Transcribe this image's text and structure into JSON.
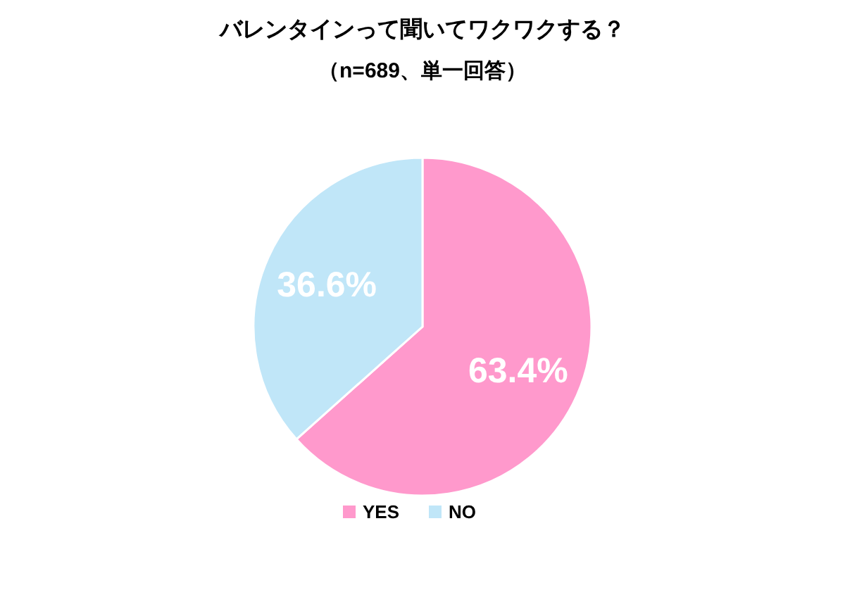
{
  "chart_data": {
    "type": "pie",
    "title": "バレンタインって聞いてワクワクする？",
    "subtitle": "（n=689、単一回答）",
    "categories": [
      "YES",
      "NO"
    ],
    "values": [
      63.4,
      36.6
    ],
    "colors": [
      "#ff99cc",
      "#c0e6f8"
    ],
    "value_labels": [
      "63.4%",
      "36.6%"
    ],
    "legend": "bottom"
  }
}
